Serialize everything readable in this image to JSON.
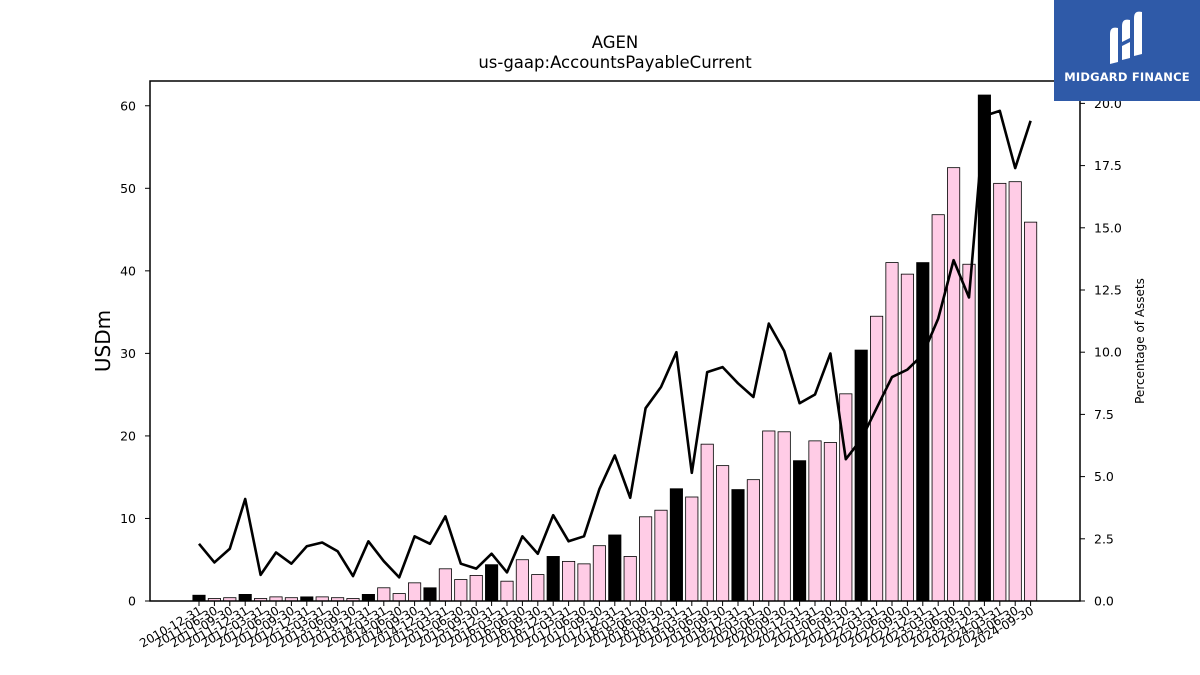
{
  "chart_data": {
    "type": "bar",
    "title": "AGEN",
    "subtitle": "us-gaap:AccountsPayableCurrent",
    "ylabel": "USDm",
    "y2label": "Percentage of Assets",
    "ylim": [
      0,
      63
    ],
    "y2lim": [
      0,
      20.9
    ],
    "yticks": [
      0,
      10,
      20,
      30,
      40,
      50,
      60
    ],
    "y2ticks": [
      "0.0",
      "2.5",
      "5.0",
      "7.5",
      "10.0",
      "12.5",
      "15.0",
      "17.5",
      "20.0"
    ],
    "categories": [
      "2010-12-31",
      "2011-06-30",
      "2011-09-30",
      "2011-12-31",
      "2012-03-31",
      "2012-06-30",
      "2012-09-30",
      "2012-12-31",
      "2013-03-31",
      "2013-06-30",
      "2013-09-30",
      "2013-12-31",
      "2014-03-31",
      "2014-06-30",
      "2014-09-30",
      "2014-12-31",
      "2015-03-31",
      "2015-06-30",
      "2015-09-30",
      "2015-12-31",
      "2016-03-31",
      "2016-06-30",
      "2016-09-30",
      "2016-12-31",
      "2017-03-31",
      "2017-06-30",
      "2017-09-30",
      "2017-12-31",
      "2018-03-31",
      "2018-06-30",
      "2018-09-30",
      "2018-12-31",
      "2019-03-31",
      "2019-06-30",
      "2019-09-30",
      "2019-12-31",
      "2020-03-31",
      "2020-06-30",
      "2020-09-30",
      "2020-12-31",
      "2021-03-31",
      "2021-06-30",
      "2021-09-30",
      "2021-12-31",
      "2022-03-31",
      "2022-06-30",
      "2022-09-30",
      "2022-12-31",
      "2023-03-31",
      "2023-06-30",
      "2023-09-30",
      "2023-12-31",
      "2024-03-31",
      "2024-06-30",
      "2024-09-30"
    ],
    "tick_labels": [
      "2010-12-31",
      "2011-06-30",
      "2011-09-30",
      "2011-12-31",
      "2012-03-31",
      "2012-06-30",
      "2012-09-30",
      "2012-12-31",
      "2013-03-31",
      "2013-06-30",
      "2013-09-30",
      "2013-12-31",
      "2014-03-31",
      "2014-06-30",
      "2014-09-30",
      "2014-12-31",
      "2015-03-31",
      "2015-06-30",
      "2015-09-30",
      "2015-12-31",
      "2016-03-31",
      "2016-06-30",
      "2016-09-30",
      "2016-12-31",
      "2017-03-31",
      "2017-06-30",
      "2017-09-30",
      "2017-12-31",
      "2018-03-31",
      "2018-06-30",
      "2018-09-30",
      "2018-12-31",
      "2019-03-31",
      "2019-06-30",
      "2019-09-30",
      "2019-12-31",
      "2020-03-31",
      "2020-06-30",
      "2020-09-30",
      "2020-12-31",
      "2021-03-31",
      "2021-06-30",
      "2021-09-30",
      "2021-12-31",
      "2022-03-31",
      "2022-06-30",
      "2022-09-30",
      "2022-12-31",
      "2023-03-31",
      "2023-06-30",
      "2023-09-30",
      "2023-12-31",
      "2024-03-31",
      "2024-06-30",
      "2024-09-30"
    ],
    "series": [
      {
        "kind": "bar",
        "values": [
          0.7,
          0.3,
          0.4,
          0.8,
          0.3,
          0.5,
          0.4,
          0.5,
          0.5,
          0.4,
          0.3,
          0.8,
          1.6,
          0.9,
          2.2,
          1.6,
          3.9,
          2.6,
          3.1,
          4.4,
          2.4,
          5.0,
          3.2,
          5.4,
          4.8,
          4.5,
          6.7,
          8.0,
          5.4,
          10.2,
          11.0,
          13.6,
          12.6,
          19.0,
          16.4,
          13.5,
          14.7,
          20.6,
          20.5,
          17.0,
          19.4,
          19.2,
          25.1,
          30.4,
          34.5,
          41.0,
          39.6,
          41.0,
          46.8,
          52.5,
          40.8,
          61.3,
          50.6,
          50.8,
          45.9
        ],
        "year_end": [
          true,
          false,
          false,
          true,
          false,
          false,
          false,
          true,
          false,
          false,
          false,
          true,
          false,
          false,
          false,
          true,
          false,
          false,
          false,
          true,
          false,
          false,
          false,
          true,
          false,
          false,
          false,
          true,
          false,
          false,
          false,
          true,
          false,
          false,
          false,
          true,
          false,
          false,
          false,
          true,
          false,
          false,
          false,
          true,
          false,
          false,
          false,
          true,
          false,
          false,
          false,
          true,
          false,
          false,
          false
        ]
      },
      {
        "kind": "line",
        "axis": "right",
        "values": [
          2.3,
          1.55,
          2.1,
          4.1,
          1.05,
          1.95,
          1.5,
          2.2,
          2.35,
          2.0,
          1.0,
          2.4,
          1.6,
          0.95,
          2.6,
          2.3,
          3.4,
          1.5,
          1.3,
          1.9,
          1.15,
          2.6,
          1.9,
          3.45,
          2.4,
          2.6,
          4.5,
          5.85,
          4.15,
          7.75,
          8.6,
          10.0,
          5.15,
          9.2,
          9.4,
          8.75,
          8.2,
          11.15,
          10.05,
          7.95,
          8.3,
          9.95,
          5.7,
          6.5,
          7.75,
          9.0,
          9.3,
          9.9,
          11.35,
          13.7,
          12.2,
          19.5,
          19.7,
          17.4,
          19.3
        ]
      }
    ],
    "colors": {
      "bar_year_end": "#000000",
      "bar_quarter": "#ffcce6",
      "bar_edge": "#000000",
      "line": "#000000"
    }
  },
  "logo": {
    "text": "MIDGARD FINANCE",
    "background": "#2f5aa8"
  }
}
